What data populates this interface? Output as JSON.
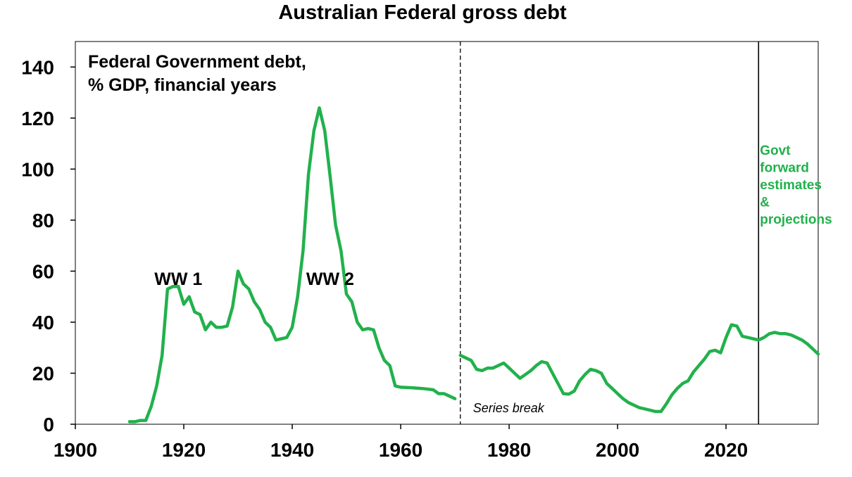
{
  "chart_data": {
    "type": "line",
    "title": "Australian Federal gross debt",
    "inner_title": [
      "Federal Government debt,",
      "% GDP, financial years"
    ],
    "xlabel": "",
    "ylabel": "",
    "xlim": [
      1900,
      2037
    ],
    "ylim": [
      0,
      150
    ],
    "xticks": [
      1900,
      1920,
      1940,
      1960,
      1980,
      2000,
      2020
    ],
    "yticks": [
      0,
      20,
      40,
      60,
      80,
      100,
      120,
      140
    ],
    "grid": false,
    "line_color": "#22b14c",
    "series": [
      {
        "values": [
          [
            1910,
            1
          ],
          [
            1911,
            1
          ],
          [
            1912,
            1.5
          ],
          [
            1913,
            1.5
          ],
          [
            1914,
            7
          ],
          [
            1915,
            15
          ],
          [
            1916,
            27
          ],
          [
            1917,
            53
          ],
          [
            1918,
            54
          ],
          [
            1919,
            54
          ],
          [
            1920,
            47
          ],
          [
            1921,
            50
          ],
          [
            1922,
            44
          ],
          [
            1923,
            43
          ],
          [
            1924,
            37
          ],
          [
            1925,
            40
          ],
          [
            1926,
            38
          ],
          [
            1927,
            38
          ],
          [
            1928,
            38.5
          ],
          [
            1929,
            46
          ],
          [
            1930,
            60
          ],
          [
            1931,
            55
          ],
          [
            1932,
            53
          ],
          [
            1933,
            48
          ],
          [
            1934,
            45
          ],
          [
            1935,
            40
          ],
          [
            1936,
            38
          ],
          [
            1937,
            33
          ],
          [
            1938,
            33.5
          ],
          [
            1939,
            34
          ],
          [
            1940,
            38
          ],
          [
            1941,
            50
          ],
          [
            1942,
            68
          ],
          [
            1943,
            98
          ],
          [
            1944,
            115
          ],
          [
            1945,
            124
          ],
          [
            1946,
            115
          ],
          [
            1947,
            97
          ],
          [
            1948,
            78
          ],
          [
            1949,
            68
          ],
          [
            1950,
            51
          ],
          [
            1951,
            48
          ],
          [
            1952,
            40
          ],
          [
            1953,
            37
          ],
          [
            1954,
            37.5
          ],
          [
            1955,
            37
          ],
          [
            1956,
            30
          ],
          [
            1957,
            25
          ],
          [
            1958,
            23
          ],
          [
            1959,
            15
          ],
          [
            1960,
            14.5
          ],
          [
            1962,
            14.3
          ],
          [
            1964,
            14
          ],
          [
            1966,
            13.5
          ],
          [
            1967,
            12
          ],
          [
            1968,
            12
          ],
          [
            1969,
            11
          ],
          [
            1970,
            10
          ]
        ]
      },
      {
        "values": [
          [
            1971,
            27
          ],
          [
            1973,
            25
          ],
          [
            1974,
            21.5
          ],
          [
            1975,
            21
          ],
          [
            1976,
            22
          ],
          [
            1977,
            22
          ],
          [
            1978,
            23
          ],
          [
            1979,
            24
          ],
          [
            1980,
            22
          ],
          [
            1981,
            20
          ],
          [
            1982,
            18
          ],
          [
            1983,
            19.5
          ],
          [
            1984,
            21
          ],
          [
            1985,
            23
          ],
          [
            1986,
            24.5
          ],
          [
            1987,
            24
          ],
          [
            1988,
            20
          ],
          [
            1989,
            16
          ],
          [
            1990,
            12
          ],
          [
            1991,
            11.8
          ],
          [
            1992,
            13
          ],
          [
            1993,
            17
          ],
          [
            1994,
            19.5
          ],
          [
            1995,
            21.5
          ],
          [
            1996,
            21
          ],
          [
            1997,
            20
          ],
          [
            1998,
            16
          ],
          [
            1999,
            14
          ],
          [
            2000,
            12
          ],
          [
            2001,
            10
          ],
          [
            2002,
            8.5
          ],
          [
            2003,
            7.5
          ],
          [
            2004,
            6.5
          ],
          [
            2005,
            6
          ],
          [
            2006,
            5.5
          ],
          [
            2007,
            5
          ],
          [
            2008,
            5
          ],
          [
            2009,
            8
          ],
          [
            2010,
            11.5
          ],
          [
            2011,
            14
          ],
          [
            2012,
            16
          ],
          [
            2013,
            17
          ],
          [
            2014,
            20.5
          ],
          [
            2015,
            23
          ],
          [
            2016,
            25.5
          ],
          [
            2017,
            28.5
          ],
          [
            2018,
            29
          ],
          [
            2019,
            28
          ],
          [
            2020,
            34
          ],
          [
            2021,
            39
          ],
          [
            2022,
            38.5
          ],
          [
            2023,
            34.5
          ],
          [
            2024,
            34
          ],
          [
            2025,
            33.5
          ],
          [
            2026,
            33
          ],
          [
            2027,
            34
          ],
          [
            2028,
            35.5
          ],
          [
            2029,
            36
          ],
          [
            2030,
            35.5
          ],
          [
            2031,
            35.5
          ],
          [
            2032,
            35
          ],
          [
            2033,
            34
          ],
          [
            2034,
            33
          ],
          [
            2035,
            31.5
          ],
          [
            2036,
            29.5
          ],
          [
            2037,
            27.5
          ]
        ]
      }
    ],
    "markers": [
      {
        "x": 1971,
        "style": "dashed",
        "label": "Series break"
      },
      {
        "x": 2026,
        "style": "solid",
        "label": ""
      }
    ],
    "annotations": [
      {
        "text": "WW 1",
        "x": 1919,
        "y": 56
      },
      {
        "text": "WW 2",
        "x": 1947,
        "y": 56
      }
    ],
    "projection_label": [
      "Govt",
      "forward",
      "estimates",
      "&",
      "projections"
    ]
  }
}
